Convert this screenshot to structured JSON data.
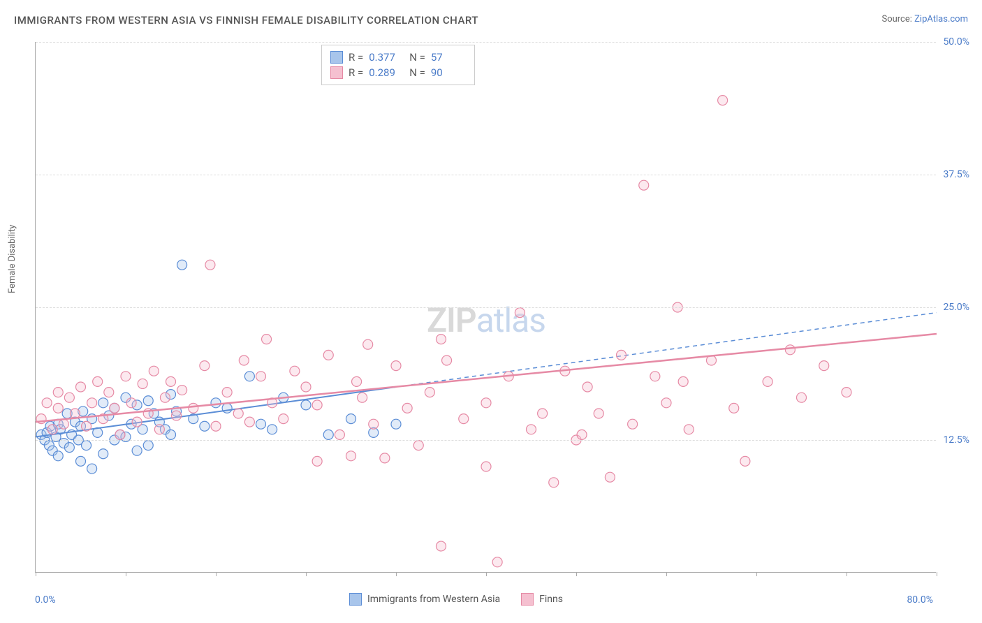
{
  "title": "IMMIGRANTS FROM WESTERN ASIA VS FINNISH FEMALE DISABILITY CORRELATION CHART",
  "source_label": "Source: ",
  "source_name": "ZipAtlas.com",
  "y_axis_label": "Female Disability",
  "watermark_a": "ZIP",
  "watermark_b": "atlas",
  "chart": {
    "type": "scatter",
    "xlim": [
      0,
      80
    ],
    "ylim": [
      0,
      50
    ],
    "x_min_label": "0.0%",
    "x_max_label": "80.0%",
    "x_tick_positions": [
      0,
      8,
      16,
      24,
      32,
      40,
      48,
      56,
      64,
      72,
      80
    ],
    "y_ticks": [
      {
        "val": 12.5,
        "label": "12.5%"
      },
      {
        "val": 25.0,
        "label": "25.0%"
      },
      {
        "val": 37.5,
        "label": "37.5%"
      },
      {
        "val": 50.0,
        "label": "50.0%"
      }
    ],
    "background_color": "#ffffff",
    "grid_color": "#dddddd",
    "axis_color": "#aaaaaa",
    "tick_label_color": "#4a7bc8",
    "marker_radius": 7,
    "marker_stroke_width": 1.2,
    "marker_fill_opacity": 0.35,
    "series": [
      {
        "name": "Immigrants from Western Asia",
        "color_stroke": "#5b8dd6",
        "color_fill": "#a8c5eb",
        "r_value": "0.377",
        "n_value": "57",
        "trend": {
          "x1": 0,
          "y1": 12.8,
          "x2": 32,
          "y2": 17.5,
          "x2_ext": 80,
          "y2_ext": 24.5,
          "width": 2,
          "dash_after_x": 32
        },
        "points": [
          [
            0.5,
            13.0
          ],
          [
            0.8,
            12.5
          ],
          [
            1.0,
            13.2
          ],
          [
            1.2,
            12.0
          ],
          [
            1.3,
            13.8
          ],
          [
            1.5,
            11.5
          ],
          [
            1.8,
            12.8
          ],
          [
            2.0,
            14.0
          ],
          [
            2.0,
            11.0
          ],
          [
            2.2,
            13.5
          ],
          [
            2.5,
            12.2
          ],
          [
            2.8,
            15.0
          ],
          [
            3.0,
            11.8
          ],
          [
            3.2,
            13.0
          ],
          [
            3.5,
            14.2
          ],
          [
            3.8,
            12.5
          ],
          [
            4.0,
            10.5
          ],
          [
            4.0,
            13.8
          ],
          [
            4.2,
            15.2
          ],
          [
            4.5,
            12.0
          ],
          [
            5.0,
            9.8
          ],
          [
            5.0,
            14.5
          ],
          [
            5.5,
            13.2
          ],
          [
            6.0,
            16.0
          ],
          [
            6.0,
            11.2
          ],
          [
            6.5,
            14.8
          ],
          [
            7.0,
            12.5
          ],
          [
            7.0,
            15.5
          ],
          [
            7.5,
            13.0
          ],
          [
            8.0,
            16.5
          ],
          [
            8.0,
            12.8
          ],
          [
            8.5,
            14.0
          ],
          [
            9.0,
            15.8
          ],
          [
            9.0,
            11.5
          ],
          [
            9.5,
            13.5
          ],
          [
            10.0,
            16.2
          ],
          [
            10.0,
            12.0
          ],
          [
            10.5,
            15.0
          ],
          [
            11.0,
            14.2
          ],
          [
            11.5,
            13.5
          ],
          [
            12.0,
            16.8
          ],
          [
            12.0,
            13.0
          ],
          [
            12.5,
            15.2
          ],
          [
            13.0,
            29.0
          ],
          [
            14.0,
            14.5
          ],
          [
            15.0,
            13.8
          ],
          [
            16.0,
            16.0
          ],
          [
            17.0,
            15.5
          ],
          [
            19.0,
            18.5
          ],
          [
            20.0,
            14.0
          ],
          [
            22.0,
            16.5
          ],
          [
            24.0,
            15.8
          ],
          [
            26.0,
            13.0
          ],
          [
            28.0,
            14.5
          ],
          [
            30.0,
            13.2
          ],
          [
            32.0,
            14.0
          ],
          [
            21.0,
            13.5
          ]
        ]
      },
      {
        "name": "Finns",
        "color_stroke": "#e68aa5",
        "color_fill": "#f5c0d0",
        "r_value": "0.289",
        "n_value": "90",
        "trend": {
          "x1": 0,
          "y1": 14.2,
          "x2": 80,
          "y2": 22.5,
          "width": 2.5
        },
        "points": [
          [
            0.5,
            14.5
          ],
          [
            1.0,
            16.0
          ],
          [
            1.5,
            13.5
          ],
          [
            2.0,
            15.5
          ],
          [
            2.0,
            17.0
          ],
          [
            2.5,
            14.0
          ],
          [
            3.0,
            16.5
          ],
          [
            3.5,
            15.0
          ],
          [
            4.0,
            17.5
          ],
          [
            4.5,
            13.8
          ],
          [
            5.0,
            16.0
          ],
          [
            5.5,
            18.0
          ],
          [
            6.0,
            14.5
          ],
          [
            6.5,
            17.0
          ],
          [
            7.0,
            15.5
          ],
          [
            7.5,
            13.0
          ],
          [
            8.0,
            18.5
          ],
          [
            8.5,
            16.0
          ],
          [
            9.0,
            14.2
          ],
          [
            9.5,
            17.8
          ],
          [
            10.0,
            15.0
          ],
          [
            10.5,
            19.0
          ],
          [
            11.0,
            13.5
          ],
          [
            11.5,
            16.5
          ],
          [
            12.0,
            18.0
          ],
          [
            12.5,
            14.8
          ],
          [
            13.0,
            17.2
          ],
          [
            14.0,
            15.5
          ],
          [
            15.0,
            19.5
          ],
          [
            15.5,
            29.0
          ],
          [
            16.0,
            13.8
          ],
          [
            17.0,
            17.0
          ],
          [
            18.0,
            15.0
          ],
          [
            18.5,
            20.0
          ],
          [
            19.0,
            14.2
          ],
          [
            20.0,
            18.5
          ],
          [
            20.5,
            22.0
          ],
          [
            21.0,
            16.0
          ],
          [
            22.0,
            14.5
          ],
          [
            23.0,
            19.0
          ],
          [
            24.0,
            17.5
          ],
          [
            25.0,
            10.5
          ],
          [
            25.0,
            15.8
          ],
          [
            26.0,
            20.5
          ],
          [
            27.0,
            13.0
          ],
          [
            28.0,
            11.0
          ],
          [
            28.5,
            18.0
          ],
          [
            29.0,
            16.5
          ],
          [
            30.0,
            14.0
          ],
          [
            31.0,
            10.8
          ],
          [
            32.0,
            19.5
          ],
          [
            33.0,
            15.5
          ],
          [
            34.0,
            12.0
          ],
          [
            35.0,
            17.0
          ],
          [
            36.0,
            2.5
          ],
          [
            36.5,
            20.0
          ],
          [
            38.0,
            14.5
          ],
          [
            40.0,
            16.0
          ],
          [
            40.0,
            10.0
          ],
          [
            41.0,
            1.0
          ],
          [
            42.0,
            18.5
          ],
          [
            43.0,
            24.5
          ],
          [
            44.0,
            13.5
          ],
          [
            45.0,
            15.0
          ],
          [
            46.0,
            8.5
          ],
          [
            47.0,
            19.0
          ],
          [
            48.0,
            12.5
          ],
          [
            49.0,
            17.5
          ],
          [
            50.0,
            15.0
          ],
          [
            51.0,
            9.0
          ],
          [
            52.0,
            20.5
          ],
          [
            53.0,
            14.0
          ],
          [
            54.0,
            36.5
          ],
          [
            55.0,
            18.5
          ],
          [
            56.0,
            16.0
          ],
          [
            57.0,
            25.0
          ],
          [
            58.0,
            13.5
          ],
          [
            60.0,
            20.0
          ],
          [
            61.0,
            44.5
          ],
          [
            62.0,
            15.5
          ],
          [
            63.0,
            10.5
          ],
          [
            65.0,
            18.0
          ],
          [
            67.0,
            21.0
          ],
          [
            68.0,
            16.5
          ],
          [
            70.0,
            19.5
          ],
          [
            72.0,
            17.0
          ],
          [
            57.5,
            18.0
          ],
          [
            48.5,
            13.0
          ],
          [
            36.0,
            22.0
          ],
          [
            29.5,
            21.5
          ]
        ]
      }
    ]
  },
  "legend_top": {
    "r_label": "R =",
    "n_label": "N ="
  }
}
